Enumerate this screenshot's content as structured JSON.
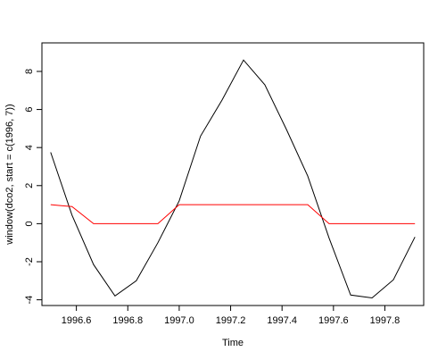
{
  "chart_data": {
    "type": "line",
    "title": "",
    "xlabel": "Time",
    "ylabel": "window(dco2, start = c(1996, 7))",
    "xlim": [
      1996.466,
      1997.951
    ],
    "ylim": [
      -4.3,
      9.5
    ],
    "grid": false,
    "legend": "none",
    "x_ticks": [
      1996.6,
      1996.8,
      1997.0,
      1997.2,
      1997.4,
      1997.6,
      1997.8
    ],
    "x_tick_labels": [
      "1996.6",
      "1996.8",
      "1997.0",
      "1997.2",
      "1997.4",
      "1997.6",
      "1997.8"
    ],
    "y_ticks": [
      -4,
      -2,
      0,
      2,
      4,
      6,
      8
    ],
    "y_tick_labels": [
      "-4",
      "-2",
      "0",
      "2",
      "4",
      "6",
      "8"
    ],
    "series": [
      {
        "color": "#000000",
        "x": [
          1996.5,
          1996.583,
          1996.667,
          1996.75,
          1996.833,
          1996.917,
          1997.0,
          1997.083,
          1997.167,
          1997.25,
          1997.333,
          1997.417,
          1997.5,
          1997.583,
          1997.667,
          1997.75,
          1997.833,
          1997.917
        ],
        "values": [
          3.75,
          0.45,
          -2.15,
          -3.8,
          -3.0,
          -1.0,
          1.2,
          4.6,
          6.5,
          8.6,
          7.3,
          4.95,
          2.5,
          -0.75,
          -3.75,
          -3.9,
          -2.95,
          -0.7
        ]
      },
      {
        "color": "#ff0000",
        "x": [
          1996.5,
          1996.542,
          1996.583,
          1996.667,
          1996.75,
          1996.833,
          1996.917,
          1997.0,
          1997.083,
          1997.167,
          1997.25,
          1997.333,
          1997.417,
          1997.5,
          1997.583,
          1997.667,
          1997.75,
          1997.833,
          1997.917
        ],
        "values": [
          1.0,
          0.95,
          0.9,
          0.0,
          0.0,
          0.0,
          0.0,
          1.0,
          1.0,
          1.0,
          1.0,
          1.0,
          1.0,
          1.0,
          0.0,
          0.0,
          0.0,
          0.0,
          0.0
        ]
      }
    ]
  }
}
